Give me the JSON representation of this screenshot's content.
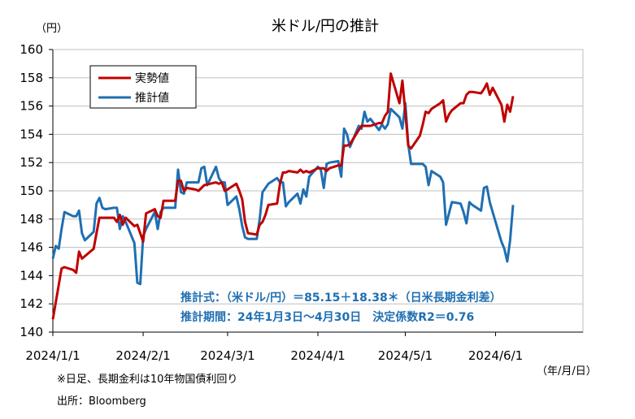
{
  "chart_data": {
    "type": "line",
    "title": "米ドル/円の推計",
    "y_unit": "（円）",
    "x_unit": "（年/月/日）",
    "ylim": [
      140,
      160
    ],
    "y_ticks": [
      140,
      142,
      144,
      146,
      148,
      150,
      152,
      154,
      156,
      158,
      160
    ],
    "xlim": [
      "2024-01-01",
      "2024-07-01"
    ],
    "x_ticks": [
      "2024/1/1",
      "2024/2/1",
      "2024/3/1",
      "2024/4/1",
      "2024/5/1",
      "2024/6/1"
    ],
    "x_tick_dates": [
      "2024-01-01",
      "2024-02-01",
      "2024-03-01",
      "2024-04-01",
      "2024-05-01",
      "2024-06-01"
    ],
    "grid": "horizontal",
    "legend_position": "top-left",
    "series": [
      {
        "name": "実勢値",
        "color": "#c00000",
        "points": [
          [
            "2024-01-01",
            140.9
          ],
          [
            "2024-01-04",
            144.5
          ],
          [
            "2024-01-05",
            144.6
          ],
          [
            "2024-01-08",
            144.4
          ],
          [
            "2024-01-09",
            144.2
          ],
          [
            "2024-01-10",
            145.7
          ],
          [
            "2024-01-11",
            145.2
          ],
          [
            "2024-01-15",
            145.9
          ],
          [
            "2024-01-16",
            147.0
          ],
          [
            "2024-01-17",
            148.1
          ],
          [
            "2024-01-18",
            148.1
          ],
          [
            "2024-01-19",
            148.1
          ],
          [
            "2024-01-22",
            148.1
          ],
          [
            "2024-01-23",
            147.8
          ],
          [
            "2024-01-24",
            148.3
          ],
          [
            "2024-01-25",
            147.6
          ],
          [
            "2024-01-26",
            148.1
          ],
          [
            "2024-01-29",
            147.5
          ],
          [
            "2024-01-30",
            147.6
          ],
          [
            "2024-01-31",
            147.0
          ],
          [
            "2024-02-01",
            146.4
          ],
          [
            "2024-02-02",
            148.4
          ],
          [
            "2024-02-05",
            148.7
          ],
          [
            "2024-02-06",
            148.2
          ],
          [
            "2024-02-07",
            148.1
          ],
          [
            "2024-02-08",
            149.3
          ],
          [
            "2024-02-09",
            149.3
          ],
          [
            "2024-02-12",
            149.3
          ],
          [
            "2024-02-13",
            150.7
          ],
          [
            "2024-02-14",
            150.7
          ],
          [
            "2024-02-15",
            150.0
          ],
          [
            "2024-02-16",
            150.2
          ],
          [
            "2024-02-19",
            150.1
          ],
          [
            "2024-02-20",
            150.0
          ],
          [
            "2024-02-21",
            150.2
          ],
          [
            "2024-02-22",
            150.4
          ],
          [
            "2024-02-26",
            150.6
          ],
          [
            "2024-02-27",
            150.5
          ],
          [
            "2024-02-28",
            150.6
          ],
          [
            "2024-02-29",
            150.0
          ],
          [
            "2024-03-01",
            150.1
          ],
          [
            "2024-03-04",
            150.5
          ],
          [
            "2024-03-05",
            150.0
          ],
          [
            "2024-03-06",
            149.4
          ],
          [
            "2024-03-07",
            147.8
          ],
          [
            "2024-03-08",
            147.0
          ],
          [
            "2024-03-11",
            146.9
          ],
          [
            "2024-03-12",
            147.6
          ],
          [
            "2024-03-13",
            147.8
          ],
          [
            "2024-03-14",
            148.3
          ],
          [
            "2024-03-15",
            149.0
          ],
          [
            "2024-03-18",
            149.1
          ],
          [
            "2024-03-19",
            150.5
          ],
          [
            "2024-03-20",
            151.3
          ],
          [
            "2024-03-21",
            151.3
          ],
          [
            "2024-03-22",
            151.4
          ],
          [
            "2024-03-25",
            151.3
          ],
          [
            "2024-03-26",
            151.5
          ],
          [
            "2024-03-27",
            151.3
          ],
          [
            "2024-03-28",
            151.4
          ],
          [
            "2024-03-29",
            151.3
          ],
          [
            "2024-04-01",
            151.6
          ],
          [
            "2024-04-02",
            151.6
          ],
          [
            "2024-04-03",
            151.6
          ],
          [
            "2024-04-04",
            151.4
          ],
          [
            "2024-04-05",
            151.6
          ],
          [
            "2024-04-08",
            151.8
          ],
          [
            "2024-04-09",
            151.8
          ],
          [
            "2024-04-10",
            153.2
          ],
          [
            "2024-04-11",
            153.2
          ],
          [
            "2024-04-12",
            153.3
          ],
          [
            "2024-04-15",
            154.3
          ],
          [
            "2024-04-16",
            154.6
          ],
          [
            "2024-04-17",
            154.6
          ],
          [
            "2024-04-18",
            154.6
          ],
          [
            "2024-04-19",
            154.6
          ],
          [
            "2024-04-22",
            154.8
          ],
          [
            "2024-04-23",
            154.8
          ],
          [
            "2024-04-24",
            155.3
          ],
          [
            "2024-04-25",
            155.6
          ],
          [
            "2024-04-26",
            158.3
          ],
          [
            "2024-04-29",
            156.2
          ],
          [
            "2024-04-30",
            157.8
          ],
          [
            "2024-05-01",
            155.6
          ],
          [
            "2024-05-02",
            153.2
          ],
          [
            "2024-05-03",
            153.0
          ],
          [
            "2024-05-06",
            153.9
          ],
          [
            "2024-05-07",
            154.7
          ],
          [
            "2024-05-08",
            155.6
          ],
          [
            "2024-05-09",
            155.5
          ],
          [
            "2024-05-10",
            155.8
          ],
          [
            "2024-05-13",
            156.2
          ],
          [
            "2024-05-14",
            156.4
          ],
          [
            "2024-05-15",
            154.9
          ],
          [
            "2024-05-16",
            155.4
          ],
          [
            "2024-05-17",
            155.7
          ],
          [
            "2024-05-20",
            156.2
          ],
          [
            "2024-05-21",
            156.2
          ],
          [
            "2024-05-22",
            156.8
          ],
          [
            "2024-05-23",
            157.0
          ],
          [
            "2024-05-24",
            157.0
          ],
          [
            "2024-05-27",
            156.9
          ],
          [
            "2024-05-28",
            157.2
          ],
          [
            "2024-05-29",
            157.6
          ],
          [
            "2024-05-30",
            156.8
          ],
          [
            "2024-05-31",
            157.3
          ],
          [
            "2024-06-03",
            156.1
          ],
          [
            "2024-06-04",
            154.9
          ],
          [
            "2024-06-05",
            156.1
          ],
          [
            "2024-06-06",
            155.6
          ],
          [
            "2024-06-07",
            156.7
          ]
        ]
      },
      {
        "name": "推計値",
        "color": "#1f6fb2",
        "points": [
          [
            "2024-01-01",
            145.2
          ],
          [
            "2024-01-02",
            146.1
          ],
          [
            "2024-01-03",
            145.9
          ],
          [
            "2024-01-04",
            147.3
          ],
          [
            "2024-01-05",
            148.5
          ],
          [
            "2024-01-08",
            148.2
          ],
          [
            "2024-01-09",
            148.2
          ],
          [
            "2024-01-10",
            148.6
          ],
          [
            "2024-01-11",
            147.0
          ],
          [
            "2024-01-12",
            146.5
          ],
          [
            "2024-01-15",
            147.1
          ],
          [
            "2024-01-16",
            149.1
          ],
          [
            "2024-01-17",
            149.5
          ],
          [
            "2024-01-18",
            148.8
          ],
          [
            "2024-01-19",
            148.7
          ],
          [
            "2024-01-22",
            148.8
          ],
          [
            "2024-01-23",
            148.8
          ],
          [
            "2024-01-24",
            147.3
          ],
          [
            "2024-01-25",
            148.2
          ],
          [
            "2024-01-26",
            147.8
          ],
          [
            "2024-01-29",
            146.3
          ],
          [
            "2024-01-30",
            143.5
          ],
          [
            "2024-01-31",
            143.4
          ],
          [
            "2024-02-01",
            146.8
          ],
          [
            "2024-02-02",
            147.3
          ],
          [
            "2024-02-05",
            148.5
          ],
          [
            "2024-02-06",
            147.3
          ],
          [
            "2024-02-07",
            148.5
          ],
          [
            "2024-02-08",
            148.8
          ],
          [
            "2024-02-09",
            148.8
          ],
          [
            "2024-02-12",
            148.8
          ],
          [
            "2024-02-13",
            151.5
          ],
          [
            "2024-02-14",
            149.9
          ],
          [
            "2024-02-15",
            149.8
          ],
          [
            "2024-02-16",
            150.6
          ],
          [
            "2024-02-19",
            150.6
          ],
          [
            "2024-02-20",
            150.6
          ],
          [
            "2024-02-21",
            151.6
          ],
          [
            "2024-02-22",
            151.7
          ],
          [
            "2024-02-23",
            150.4
          ],
          [
            "2024-02-26",
            151.7
          ],
          [
            "2024-02-27",
            150.9
          ],
          [
            "2024-02-28",
            150.6
          ],
          [
            "2024-02-29",
            150.6
          ],
          [
            "2024-03-01",
            149.0
          ],
          [
            "2024-03-04",
            149.6
          ],
          [
            "2024-03-05",
            148.7
          ],
          [
            "2024-03-06",
            147.5
          ],
          [
            "2024-03-07",
            146.7
          ],
          [
            "2024-03-08",
            146.6
          ],
          [
            "2024-03-11",
            146.6
          ],
          [
            "2024-03-12",
            148.0
          ],
          [
            "2024-03-13",
            149.9
          ],
          [
            "2024-03-14",
            150.2
          ],
          [
            "2024-03-15",
            150.5
          ],
          [
            "2024-03-18",
            150.9
          ],
          [
            "2024-03-19",
            150.6
          ],
          [
            "2024-03-20",
            150.6
          ],
          [
            "2024-03-21",
            148.9
          ],
          [
            "2024-03-22",
            149.2
          ],
          [
            "2024-03-25",
            149.8
          ],
          [
            "2024-03-26",
            149.1
          ],
          [
            "2024-03-27",
            150.1
          ],
          [
            "2024-03-28",
            149.6
          ],
          [
            "2024-03-29",
            151.0
          ],
          [
            "2024-04-01",
            151.7
          ],
          [
            "2024-04-02",
            151.5
          ],
          [
            "2024-04-03",
            150.2
          ],
          [
            "2024-04-04",
            151.9
          ],
          [
            "2024-04-05",
            152.0
          ],
          [
            "2024-04-08",
            152.1
          ],
          [
            "2024-04-09",
            151.0
          ],
          [
            "2024-04-10",
            154.4
          ],
          [
            "2024-04-11",
            154.0
          ],
          [
            "2024-04-12",
            153.1
          ],
          [
            "2024-04-15",
            154.6
          ],
          [
            "2024-04-16",
            154.4
          ],
          [
            "2024-04-17",
            155.6
          ],
          [
            "2024-04-18",
            154.9
          ],
          [
            "2024-04-19",
            155.1
          ],
          [
            "2024-04-22",
            154.3
          ],
          [
            "2024-04-23",
            154.7
          ],
          [
            "2024-04-24",
            154.4
          ],
          [
            "2024-04-25",
            154.7
          ],
          [
            "2024-04-26",
            155.8
          ],
          [
            "2024-04-29",
            155.2
          ],
          [
            "2024-04-30",
            154.4
          ],
          [
            "2024-05-01",
            156.2
          ],
          [
            "2024-05-02",
            153.3
          ],
          [
            "2024-05-03",
            151.9
          ],
          [
            "2024-05-06",
            151.9
          ],
          [
            "2024-05-07",
            151.9
          ],
          [
            "2024-05-08",
            151.7
          ],
          [
            "2024-05-09",
            150.4
          ],
          [
            "2024-05-10",
            151.4
          ],
          [
            "2024-05-13",
            151.0
          ],
          [
            "2024-05-14",
            150.6
          ],
          [
            "2024-05-15",
            147.6
          ],
          [
            "2024-05-16",
            148.4
          ],
          [
            "2024-05-17",
            149.2
          ],
          [
            "2024-05-20",
            149.1
          ],
          [
            "2024-05-21",
            148.5
          ],
          [
            "2024-05-22",
            147.7
          ],
          [
            "2024-05-23",
            149.2
          ],
          [
            "2024-05-24",
            149.0
          ],
          [
            "2024-05-27",
            148.6
          ],
          [
            "2024-05-28",
            150.2
          ],
          [
            "2024-05-29",
            150.3
          ],
          [
            "2024-05-30",
            149.2
          ],
          [
            "2024-05-31",
            148.5
          ],
          [
            "2024-06-03",
            146.4
          ],
          [
            "2024-06-04",
            145.9
          ],
          [
            "2024-06-05",
            145.0
          ],
          [
            "2024-06-06",
            146.5
          ],
          [
            "2024-06-07",
            149.0
          ]
        ]
      }
    ],
    "annotations": [
      "推計式：（米ドル/円）＝85.15＋18.38＊（日米長期金利差）",
      "推計期間：24年1月3日～4月30日　決定係数R2＝0.76"
    ],
    "footnotes": [
      "※日足、長期金利は10年物国債利回り",
      "出所：Bloomberg"
    ]
  }
}
